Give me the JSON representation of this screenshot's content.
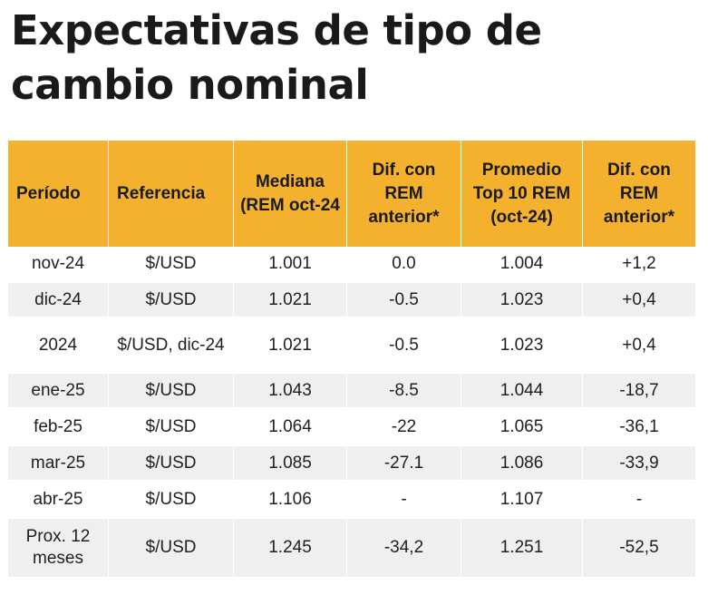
{
  "title": "Expectativas de tipo de cambio nominal",
  "table": {
    "headers": [
      "Período",
      "Referencia",
      "Mediana (REM oct-24",
      "Dif. con REM anterior*",
      "Promedio Top 10 REM (oct-24)",
      "Dif. con REM anterior*"
    ],
    "rows": [
      [
        "nov-24",
        "$/USD",
        "1.001",
        "0.0",
        "1.004",
        "+1,2"
      ],
      [
        "dic-24",
        "$/USD",
        "1.021",
        "-0.5",
        "1.023",
        "+0,4"
      ],
      [
        "2024",
        "$/USD, dic-24",
        "1.021",
        "-0.5",
        "1.023",
        "+0,4"
      ],
      [
        "ene-25",
        "$/USD",
        "1.043",
        "-8.5",
        "1.044",
        "-18,7"
      ],
      [
        "feb-25",
        "$/USD",
        "1.064",
        "-22",
        "1.065",
        "-36,1"
      ],
      [
        "mar-25",
        "$/USD",
        "1.085",
        "-27.1",
        "1.086",
        "-33,9"
      ],
      [
        "abr-25",
        "$/USD",
        "1.106",
        "-",
        "1.107",
        "-"
      ],
      [
        "Prox. 12 meses",
        "$/USD",
        "1.245",
        "-34,2",
        "1.251",
        "-52,5"
      ]
    ]
  },
  "colors": {
    "header_bg": "#f3b12e",
    "stripe_bg": "#efefef",
    "text": "#1a1a1a"
  }
}
